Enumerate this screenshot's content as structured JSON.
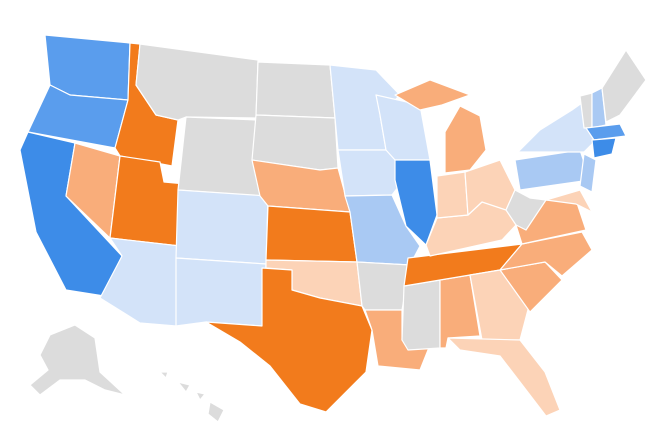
{
  "map": {
    "fills": [
      "#3d8ce8",
      "#5a9ded",
      "#a9c9f3",
      "#d3e3f9",
      "#dcdcdc",
      "#fcd3b7",
      "#f9ad7a",
      "#f27b1c"
    ]
  }
}
